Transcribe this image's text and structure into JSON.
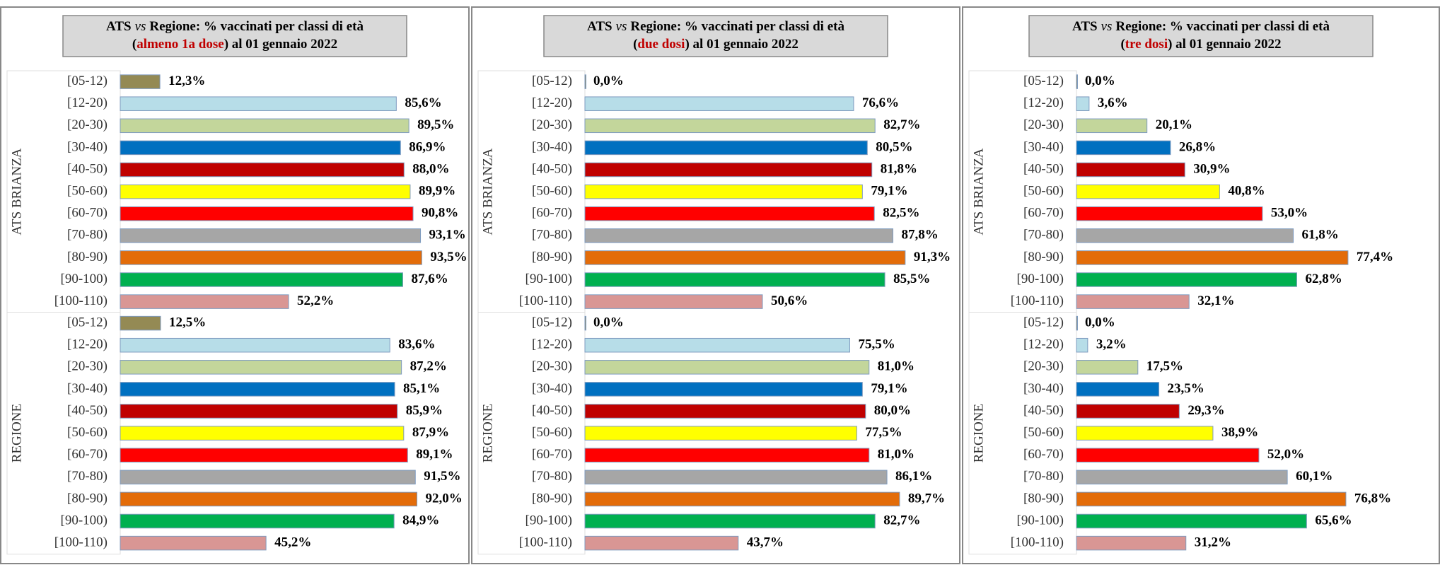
{
  "chart_data": [
    {
      "type": "bar",
      "title": [
        "ATS",
        "vs",
        "Regione: % vaccinati per classi di età"
      ],
      "subtitle": [
        "(",
        "almeno 1a dose",
        ") al 01 gennaio 2022"
      ],
      "categories": [
        "[05-12)",
        "[12-20)",
        "[20-30)",
        "[30-40)",
        "[40-50)",
        "[50-60)",
        "[60-70)",
        "[70-80)",
        "[80-90)",
        "[90-100)",
        "[100-110)"
      ],
      "colors": [
        "#948a54",
        "#b7dde8",
        "#c3d69b",
        "#0070c0",
        "#c00000",
        "#ffff00",
        "#ff0000",
        "#a6a6a6",
        "#e36c09",
        "#00b050",
        "#d99694"
      ],
      "groups": [
        {
          "name": "ATS BRIANZA",
          "values": [
            12.3,
            85.6,
            89.5,
            86.9,
            88.0,
            89.9,
            90.8,
            93.1,
            93.5,
            87.6,
            52.2
          ],
          "value_labels": [
            "12,3%",
            "85,6%",
            "89,5%",
            "86,9%",
            "88,0%",
            "89,9%",
            "90,8%",
            "93,1%",
            "93,5%",
            "87,6%",
            "52,2%"
          ]
        },
        {
          "name": "REGIONE",
          "values": [
            12.5,
            83.6,
            87.2,
            85.1,
            85.9,
            87.9,
            89.1,
            91.5,
            92.0,
            84.9,
            45.2
          ],
          "value_labels": [
            "12,5%",
            "83,6%",
            "87,2%",
            "85,1%",
            "85,9%",
            "87,9%",
            "89,1%",
            "91,5%",
            "92,0%",
            "84,9%",
            "45,2%"
          ]
        }
      ]
    },
    {
      "type": "bar",
      "title": [
        "ATS",
        "vs",
        "Regione: % vaccinati per classi di età"
      ],
      "subtitle": [
        "(",
        "due dosi",
        ") al 01 gennaio 2022"
      ],
      "categories": [
        "[05-12)",
        "[12-20)",
        "[20-30)",
        "[30-40)",
        "[40-50)",
        "[50-60)",
        "[60-70)",
        "[70-80)",
        "[80-90)",
        "[90-100)",
        "[100-110)"
      ],
      "colors": [
        "#948a54",
        "#b7dde8",
        "#c3d69b",
        "#0070c0",
        "#c00000",
        "#ffff00",
        "#ff0000",
        "#a6a6a6",
        "#e36c09",
        "#00b050",
        "#d99694"
      ],
      "groups": [
        {
          "name": "ATS BRIANZA",
          "values": [
            0.0,
            76.6,
            82.7,
            80.5,
            81.8,
            79.1,
            82.5,
            87.8,
            91.3,
            85.5,
            50.6
          ],
          "value_labels": [
            "0,0%",
            "76,6%",
            "82,7%",
            "80,5%",
            "81,8%",
            "79,1%",
            "82,5%",
            "87,8%",
            "91,3%",
            "85,5%",
            "50,6%"
          ]
        },
        {
          "name": "REGIONE",
          "values": [
            0.0,
            75.5,
            81.0,
            79.1,
            80.0,
            77.5,
            81.0,
            86.1,
            89.7,
            82.7,
            43.7
          ],
          "value_labels": [
            "0,0%",
            "75,5%",
            "81,0%",
            "79,1%",
            "80,0%",
            "77,5%",
            "81,0%",
            "86,1%",
            "89,7%",
            "82,7%",
            "43,7%"
          ]
        }
      ]
    },
    {
      "type": "bar",
      "title": [
        "ATS",
        "vs",
        "Regione: % vaccinati per classi di età"
      ],
      "subtitle": [
        "(",
        "tre dosi",
        ") al 01 gennaio 2022"
      ],
      "categories": [
        "[05-12)",
        "[12-20)",
        "[20-30)",
        "[30-40)",
        "[40-50)",
        "[50-60)",
        "[60-70)",
        "[70-80)",
        "[80-90)",
        "[90-100)",
        "[100-110)"
      ],
      "colors": [
        "#948a54",
        "#b7dde8",
        "#c3d69b",
        "#0070c0",
        "#c00000",
        "#ffff00",
        "#ff0000",
        "#a6a6a6",
        "#e36c09",
        "#00b050",
        "#d99694"
      ],
      "groups": [
        {
          "name": "ATS BRIANZA",
          "values": [
            0.0,
            3.6,
            20.1,
            26.8,
            30.9,
            40.8,
            53.0,
            61.8,
            77.4,
            62.8,
            32.1
          ],
          "value_labels": [
            "0,0%",
            "3,6%",
            "20,1%",
            "26,8%",
            "30,9%",
            "40,8%",
            "53,0%",
            "61,8%",
            "77,4%",
            "62,8%",
            "32,1%"
          ]
        },
        {
          "name": "REGIONE",
          "values": [
            0.0,
            3.2,
            17.5,
            23.5,
            29.3,
            38.9,
            52.0,
            60.1,
            76.8,
            65.6,
            31.2
          ],
          "value_labels": [
            "0,0%",
            "3,2%",
            "17,5%",
            "23,5%",
            "29,3%",
            "38,9%",
            "52,0%",
            "60,1%",
            "76,8%",
            "65,6%",
            "31,2%"
          ]
        }
      ]
    }
  ]
}
